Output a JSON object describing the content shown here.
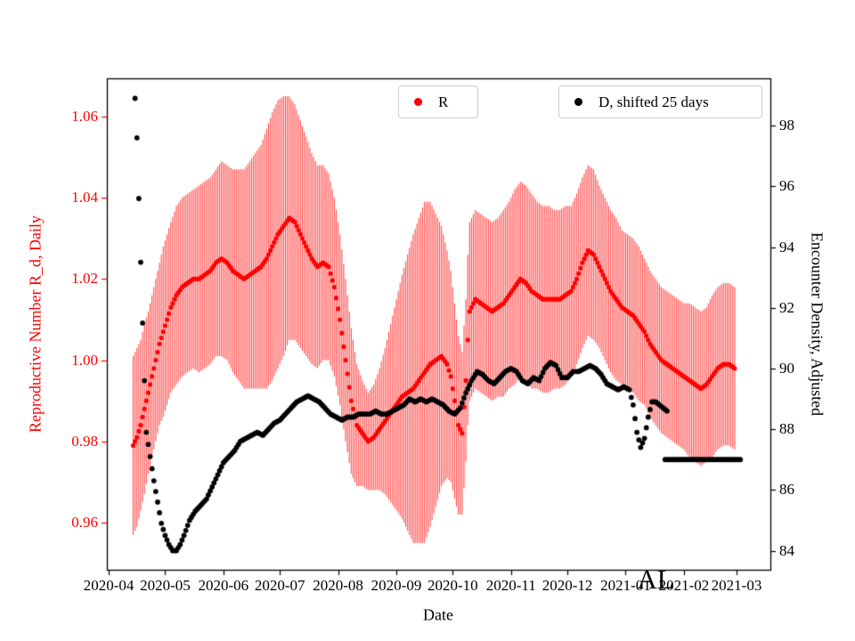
{
  "chart_data": {
    "type": "scatter",
    "title": "",
    "xlabel": "Date",
    "ylabel_left": "Reproductive Number R_d, Daily",
    "ylabel_right": "Encounter Density, Adjusted",
    "annotation": "AL",
    "grid": false,
    "legend_position": "top-inside",
    "legend": [
      {
        "label": "R",
        "color": "#ff0000"
      },
      {
        "label": "D, shifted 25 days",
        "color": "#000000"
      }
    ],
    "x_tick_labels": [
      "2020-04",
      "2020-05",
      "2020-06",
      "2020-07",
      "2020-08",
      "2020-09",
      "2020-10",
      "2020-11",
      "2020-12",
      "2021-01",
      "2021-02",
      "2021-03"
    ],
    "x_tick_days": [
      0,
      30,
      61,
      91,
      122,
      153,
      183,
      214,
      244,
      275,
      306,
      334
    ],
    "x_range_days": [
      -1,
      352
    ],
    "left_axis": {
      "label": "Reproductive Number R_d, Daily",
      "color": "#ff0000",
      "range": [
        0.9484,
        1.0694
      ],
      "ticks": [
        0.96,
        0.98,
        1.0,
        1.02,
        1.04,
        1.06
      ],
      "tick_labels": [
        "0.96",
        "0.98",
        "1.00",
        "1.02",
        "1.04",
        "1.06"
      ]
    },
    "right_axis": {
      "label": "Encounter Density, Adjusted",
      "color": "#000000",
      "range": [
        83.37,
        99.56
      ],
      "ticks": [
        84,
        86,
        88,
        90,
        92,
        94,
        96,
        98
      ],
      "tick_labels": [
        "84",
        "86",
        "88",
        "90",
        "92",
        "94",
        "96",
        "98"
      ]
    },
    "series": [
      {
        "name": "R",
        "axis": "left",
        "color": "#ff0000",
        "marker": "circle",
        "x": [
          13,
          15,
          17,
          19,
          21,
          23,
          25,
          27,
          29,
          31,
          33,
          36,
          39,
          42,
          45,
          48,
          51,
          54,
          57,
          60,
          63,
          66,
          69,
          72,
          75,
          78,
          81,
          84,
          87,
          90,
          93,
          96,
          99,
          102,
          105,
          108,
          111,
          114,
          117,
          120,
          123,
          126,
          129,
          132,
          135,
          138,
          141,
          144,
          147,
          150,
          153,
          156,
          159,
          162,
          165,
          168,
          171,
          174,
          177,
          180,
          182,
          184,
          186,
          188,
          190,
          191,
          192,
          195,
          198,
          201,
          204,
          207,
          210,
          213,
          216,
          219,
          222,
          225,
          228,
          231,
          234,
          237,
          240,
          243,
          246,
          249,
          252,
          255,
          258,
          261,
          264,
          267,
          270,
          273,
          276,
          279,
          282,
          285,
          288,
          291,
          294,
          297,
          300,
          303,
          306,
          309,
          312,
          315,
          318,
          321,
          324,
          327,
          330,
          333
        ],
        "y": [
          0.979,
          0.981,
          0.984,
          0.988,
          0.992,
          0.996,
          1.0,
          1.004,
          1.007,
          1.01,
          1.013,
          1.016,
          1.018,
          1.019,
          1.02,
          1.02,
          1.021,
          1.022,
          1.024,
          1.025,
          1.024,
          1.022,
          1.021,
          1.02,
          1.021,
          1.022,
          1.023,
          1.025,
          1.028,
          1.031,
          1.033,
          1.035,
          1.034,
          1.031,
          1.028,
          1.025,
          1.023,
          1.024,
          1.023,
          1.018,
          1.01,
          1.0,
          0.99,
          0.984,
          0.982,
          0.98,
          0.981,
          0.983,
          0.985,
          0.987,
          0.989,
          0.991,
          0.992,
          0.993,
          0.995,
          0.997,
          0.999,
          1.0,
          1.001,
          0.999,
          0.996,
          0.99,
          0.984,
          0.982,
          0.995,
          1.005,
          1.012,
          1.015,
          1.014,
          1.013,
          1.012,
          1.013,
          1.014,
          1.016,
          1.018,
          1.02,
          1.019,
          1.017,
          1.016,
          1.015,
          1.015,
          1.015,
          1.015,
          1.016,
          1.017,
          1.02,
          1.024,
          1.027,
          1.026,
          1.023,
          1.02,
          1.017,
          1.015,
          1.013,
          1.012,
          1.011,
          1.009,
          1.007,
          1.004,
          1.002,
          1.0,
          0.999,
          0.998,
          0.997,
          0.996,
          0.995,
          0.994,
          0.993,
          0.994,
          0.996,
          0.998,
          0.999,
          0.999,
          0.998
        ],
        "yerr": [
          0.022,
          0.022,
          0.021,
          0.021,
          0.02,
          0.02,
          0.02,
          0.02,
          0.021,
          0.021,
          0.021,
          0.022,
          0.022,
          0.022,
          0.022,
          0.023,
          0.023,
          0.023,
          0.023,
          0.024,
          0.024,
          0.025,
          0.026,
          0.027,
          0.028,
          0.029,
          0.03,
          0.032,
          0.033,
          0.033,
          0.032,
          0.03,
          0.029,
          0.028,
          0.027,
          0.026,
          0.025,
          0.024,
          0.023,
          0.022,
          0.021,
          0.02,
          0.018,
          0.015,
          0.013,
          0.012,
          0.013,
          0.015,
          0.018,
          0.022,
          0.026,
          0.03,
          0.034,
          0.038,
          0.04,
          0.042,
          0.04,
          0.036,
          0.032,
          0.028,
          0.026,
          0.024,
          0.022,
          0.02,
          0.02,
          0.021,
          0.022,
          0.022,
          0.022,
          0.022,
          0.022,
          0.022,
          0.023,
          0.023,
          0.024,
          0.024,
          0.024,
          0.024,
          0.023,
          0.023,
          0.023,
          0.022,
          0.022,
          0.022,
          0.021,
          0.021,
          0.021,
          0.021,
          0.021,
          0.02,
          0.02,
          0.02,
          0.02,
          0.019,
          0.019,
          0.019,
          0.019,
          0.018,
          0.018,
          0.018,
          0.018,
          0.018,
          0.018,
          0.018,
          0.018,
          0.019,
          0.019,
          0.019,
          0.019,
          0.02,
          0.02,
          0.02,
          0.02,
          0.02
        ]
      },
      {
        "name": "D, shifted 25 days",
        "axis": "right",
        "color": "#000000",
        "marker": "circle",
        "segments": [
          {
            "x": [
              14,
              15,
              16,
              17,
              18,
              19,
              20,
              22,
              24,
              26,
              28,
              30,
              32,
              34,
              36,
              38,
              40,
              43,
              46,
              49,
              52,
              55,
              58,
              61,
              64,
              67,
              70,
              73,
              76,
              79,
              82,
              85,
              88,
              91,
              94,
              97,
              100,
              103,
              106,
              109,
              112,
              115,
              118,
              121,
              124,
              127,
              130,
              133,
              136,
              139,
              142,
              145,
              148,
              151,
              154,
              157,
              160,
              163,
              166,
              169,
              172,
              175,
              178,
              181,
              184,
              187,
              190,
              193,
              196,
              199,
              202,
              205,
              208,
              211,
              214,
              217,
              220,
              223,
              226,
              229,
              232,
              235,
              238,
              241,
              244,
              247,
              250,
              253,
              256,
              259,
              262,
              265,
              268,
              271,
              274,
              277,
              279,
              281,
              283,
              285,
              287,
              289,
              291,
              293,
              295,
              297
            ],
            "y": [
              98.9,
              97.6,
              95.6,
              93.5,
              91.5,
              89.6,
              87.9,
              87.1,
              86.3,
              85.6,
              84.9,
              84.5,
              84.2,
              84.0,
              84.0,
              84.2,
              84.5,
              85.0,
              85.3,
              85.5,
              85.7,
              86.1,
              86.5,
              86.9,
              87.1,
              87.3,
              87.6,
              87.7,
              87.8,
              87.9,
              87.8,
              88.0,
              88.2,
              88.3,
              88.5,
              88.7,
              88.9,
              89.0,
              89.1,
              89.0,
              88.9,
              88.7,
              88.5,
              88.4,
              88.3,
              88.4,
              88.4,
              88.5,
              88.5,
              88.5,
              88.6,
              88.5,
              88.5,
              88.6,
              88.7,
              88.8,
              89.0,
              88.9,
              89.0,
              88.9,
              89.0,
              88.9,
              88.8,
              88.6,
              88.5,
              88.7,
              89.2,
              89.6,
              89.9,
              89.8,
              89.6,
              89.5,
              89.7,
              89.9,
              90.0,
              89.9,
              89.6,
              89.5,
              89.7,
              89.6,
              90.0,
              90.2,
              90.1,
              89.7,
              89.7,
              89.9,
              89.9,
              90.0,
              90.1,
              90.0,
              89.8,
              89.5,
              89.4,
              89.3,
              89.4,
              89.3,
              88.8,
              87.9,
              87.4,
              87.7,
              88.4,
              88.9,
              88.9,
              88.8,
              88.7,
              88.6
            ]
          },
          {
            "x": [
              296,
              336
            ],
            "y": [
              87.0,
              87.0
            ]
          }
        ]
      }
    ]
  }
}
